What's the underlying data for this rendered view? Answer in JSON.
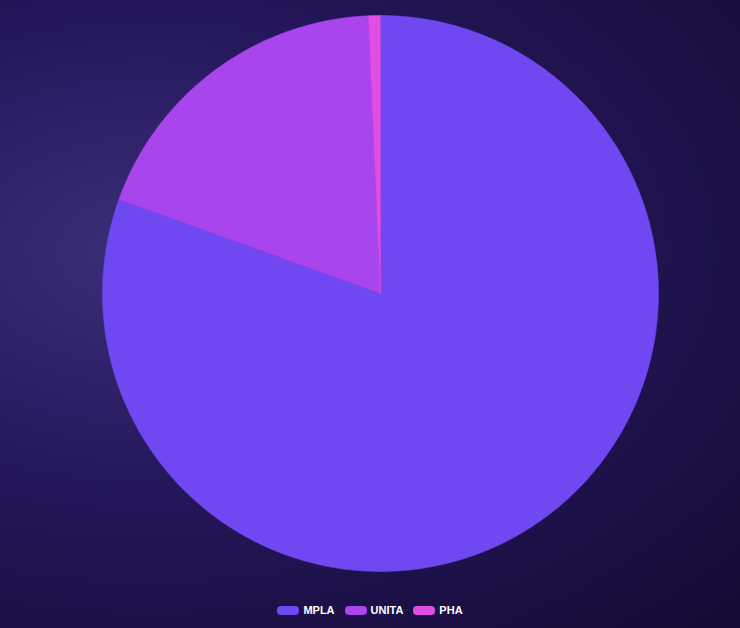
{
  "chart_data": {
    "type": "pie",
    "categories": [
      "MPLA",
      "UNITA",
      "PHA"
    ],
    "values": [
      80.5,
      18.8,
      0.7
    ],
    "colors": [
      "#6f48f2",
      "#a845ec",
      "#e24de6"
    ],
    "legend": "bottom"
  }
}
